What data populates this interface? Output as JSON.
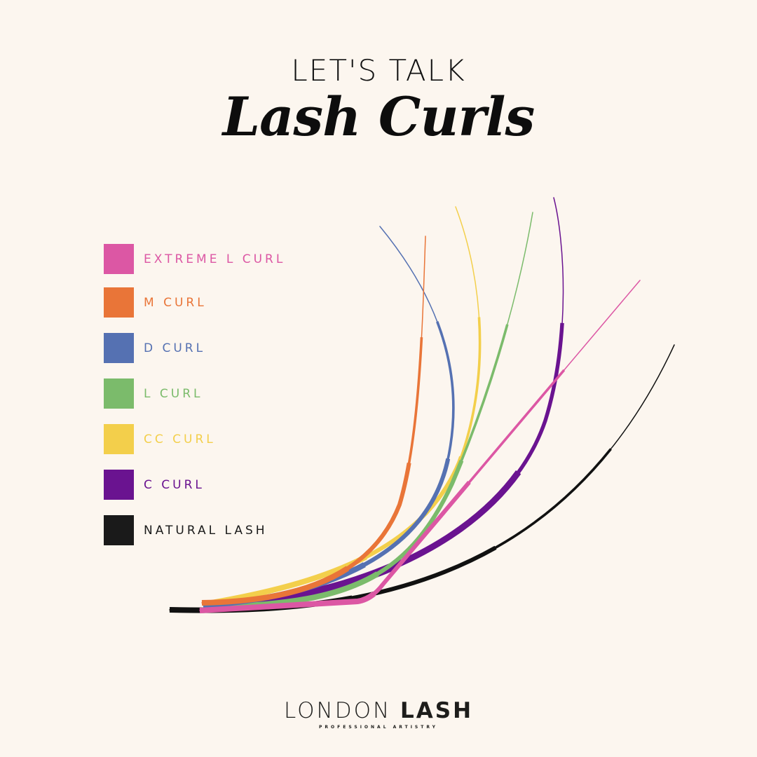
{
  "header": {
    "kicker": "LET'S TALK",
    "title": "Lash Curls"
  },
  "legend": [
    {
      "label": "EXTREME L CURL",
      "color": "#dc57a4"
    },
    {
      "label": "M CURL",
      "color": "#e97538"
    },
    {
      "label": "D CURL",
      "color": "#5571b2"
    },
    {
      "label": "L CURL",
      "color": "#7bbb6b"
    },
    {
      "label": "CC CURL",
      "color": "#f3cf4b"
    },
    {
      "label": "C CURL",
      "color": "#6a1390"
    },
    {
      "label": "NATURAL LASH",
      "color": "#1a1a1a"
    }
  ],
  "logo": {
    "word1": "LONDON",
    "word2": "LASH",
    "tagline": "PROFESSIONAL ARTISTRY"
  }
}
